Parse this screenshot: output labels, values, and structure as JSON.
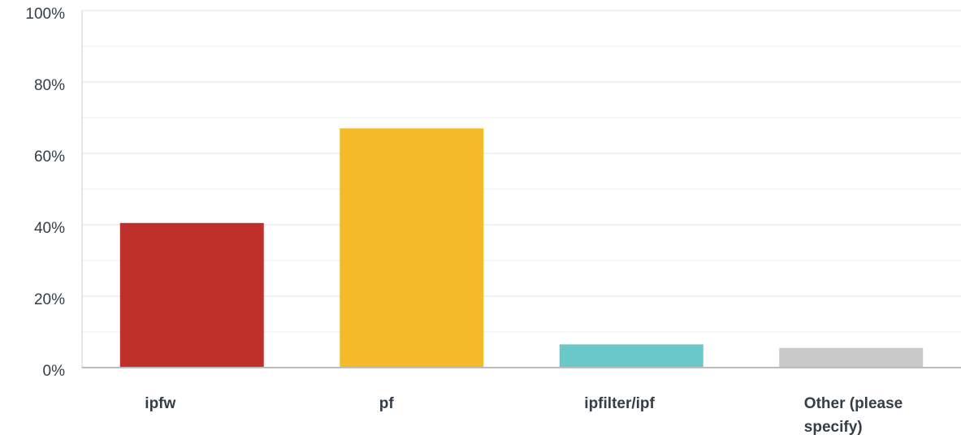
{
  "chart_data": {
    "type": "bar",
    "categories": [
      "ipfw",
      "pf",
      "ipfilter/ipf",
      "Other (please specify)"
    ],
    "category_label_lines": [
      [
        "ipfw"
      ],
      [
        "pf"
      ],
      [
        "ipfilter/ipf"
      ],
      [
        "Other (please",
        "specify)"
      ]
    ],
    "values": [
      40.5,
      67,
      6.5,
      5.5
    ],
    "colors": [
      "#c0302b",
      "#f4ba2a",
      "#6bc8c9",
      "#c9c9c9"
    ],
    "ylim": [
      0,
      100
    ],
    "yticks": [
      0,
      20,
      40,
      60,
      80,
      100
    ],
    "ytick_labels": [
      "0%",
      "20%",
      "40%",
      "60%",
      "80%",
      "100%"
    ],
    "minor_gridlines": [
      10,
      30,
      50,
      70,
      90
    ],
    "grid": true,
    "title": "",
    "xlabel": "",
    "ylabel": ""
  }
}
